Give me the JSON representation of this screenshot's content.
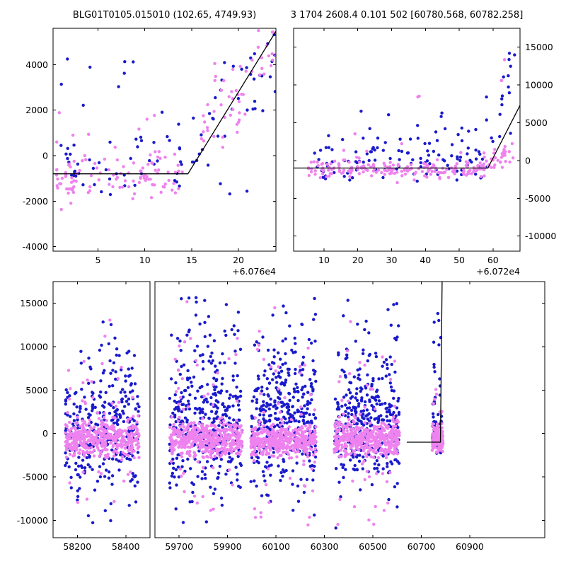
{
  "titles": {
    "left": "BLG01T0105.015010 (102.65, 4749.93)",
    "right": "3 1704 2608.4 0.101 502 [60780.568, 60782.258]"
  },
  "colors": {
    "blue": "#1a1acc",
    "violet": "#ee82ee",
    "line": "#000000",
    "frame": "#000000",
    "text": "#000000",
    "background": "#ffffff"
  },
  "chart_data": [
    {
      "id": "top_left",
      "type": "scatter",
      "title": "BLG01T0105.015010 (102.65, 4749.93)",
      "ylim": [
        -4200,
        5600
      ],
      "y_side": "left",
      "x_offset_label": "+6.076e4",
      "yticks": [
        {
          "v": -4000,
          "label": "-4000"
        },
        {
          "v": -2000,
          "label": "-2000"
        },
        {
          "v": 0,
          "label": "0"
        },
        {
          "v": 2000,
          "label": "2000"
        },
        {
          "v": 4000,
          "label": "4000"
        }
      ],
      "segments": [
        {
          "xlim": [
            60760.2,
            60784.0
          ],
          "xticks": [
            {
              "v": 60765,
              "label": "5"
            },
            {
              "v": 60770,
              "label": "10"
            },
            {
              "v": 60775,
              "label": "15"
            },
            {
              "v": 60780,
              "label": "20"
            }
          ]
        }
      ],
      "line": [
        [
          60760.2,
          -800
        ],
        [
          60774.6,
          -800
        ],
        [
          60784.5,
          5800
        ]
      ],
      "clusters": [
        {
          "c": "blue",
          "n": 50,
          "x": [
            60760.8,
            60774.0
          ],
          "ym": [
            -300,
            -300
          ],
          "s": 900,
          "clip": [
            -1800,
            2400
          ]
        },
        {
          "c": "blue",
          "n": 8,
          "x": [
            60761.0,
            60771.0
          ],
          "ym": [
            3600,
            3600
          ],
          "s": 800,
          "clip": [
            1800,
            4700
          ]
        },
        {
          "c": "blue",
          "n": 40,
          "x": [
            60774.5,
            60784.0
          ],
          "ym": [
            300,
            4300
          ],
          "s": 1100,
          "clip": [
            -1700,
            5500
          ]
        },
        {
          "c": "blue",
          "n": 2,
          "x": [
            60779.0,
            60781.0
          ],
          "ym": [
            -1500,
            -1500
          ],
          "s": 200,
          "clip": [
            -1700,
            -1200
          ]
        },
        {
          "c": "violet",
          "n": 95,
          "x": [
            60760.5,
            60774.2
          ],
          "ym": [
            -900,
            -900
          ],
          "s": 500,
          "clip": [
            -1900,
            400
          ]
        },
        {
          "c": "violet",
          "n": 20,
          "x": [
            60760.5,
            60774.0
          ],
          "ym": [
            -200,
            -200
          ],
          "s": 1300,
          "clip": [
            -2400,
            2400
          ]
        },
        {
          "c": "violet",
          "n": 55,
          "x": [
            60776.0,
            60784.2
          ],
          "ym": [
            700,
            4900
          ],
          "s": 900,
          "clip": [
            -600,
            5600
          ]
        }
      ]
    },
    {
      "id": "top_right",
      "type": "scatter",
      "title": "3 1704 2608.4 0.101 502 [60780.568, 60782.258]",
      "ylim": [
        -12000,
        17500
      ],
      "y_side": "right",
      "x_offset_label": "+6.072e4",
      "yticks": [
        {
          "v": -10000,
          "label": "-10000"
        },
        {
          "v": -5000,
          "label": "-5000"
        },
        {
          "v": 0,
          "label": "0"
        },
        {
          "v": 5000,
          "label": "5000"
        },
        {
          "v": 10000,
          "label": "10000"
        },
        {
          "v": 15000,
          "label": "15000"
        }
      ],
      "segments": [
        {
          "xlim": [
            60721,
            60788
          ],
          "xticks": [
            {
              "v": 60730,
              "label": "10"
            },
            {
              "v": 60740,
              "label": "20"
            },
            {
              "v": 60750,
              "label": "30"
            },
            {
              "v": 60760,
              "label": "40"
            },
            {
              "v": 60770,
              "label": "50"
            },
            {
              "v": 60780,
              "label": "60"
            }
          ]
        }
      ],
      "line": [
        [
          60721,
          -1000
        ],
        [
          60778.5,
          -1000
        ],
        [
          60788,
          7300
        ]
      ],
      "clusters": [
        {
          "c": "blue",
          "n": 95,
          "x": [
            60727.0,
            60777.0
          ],
          "ym": [
            -400,
            -400
          ],
          "s": 1500,
          "clip": [
            -2800,
            3800
          ]
        },
        {
          "c": "blue",
          "n": 25,
          "x": [
            60727.0,
            60776.0
          ],
          "ym": [
            2800,
            2800
          ],
          "s": 1700,
          "clip": [
            800,
            6800
          ]
        },
        {
          "c": "blue",
          "n": 16,
          "x": [
            60776.0,
            60786.0
          ],
          "ym": [
            1500,
            9500
          ],
          "s": 2600,
          "clip": [
            -1500,
            14500
          ]
        },
        {
          "c": "blue",
          "n": 4,
          "x": [
            60782.0,
            60786.5
          ],
          "ym": [
            13500,
            13500
          ],
          "s": 2000,
          "clip": [
            10000,
            16500
          ]
        },
        {
          "c": "violet",
          "n": 160,
          "x": [
            60725.0,
            60778.0
          ],
          "ym": [
            -1200,
            -1200
          ],
          "s": 600,
          "clip": [
            -2700,
            400
          ]
        },
        {
          "c": "violet",
          "n": 25,
          "x": [
            60727.0,
            60777.0
          ],
          "ym": [
            -500,
            -500
          ],
          "s": 1800,
          "clip": [
            -3200,
            4500
          ]
        },
        {
          "c": "violet",
          "n": 2,
          "x": [
            60757.5,
            60759.0
          ],
          "ym": [
            8000,
            8000
          ],
          "s": 300,
          "clip": [
            7400,
            8600
          ]
        },
        {
          "c": "violet",
          "n": 40,
          "x": [
            60776.0,
            60786.0
          ],
          "ym": [
            -900,
            800
          ],
          "s": 900,
          "clip": [
            -2200,
            3500
          ]
        },
        {
          "c": "violet",
          "n": 3,
          "x": [
            60780.0,
            60784.5
          ],
          "ym": [
            12200,
            12200
          ],
          "s": 1200,
          "clip": [
            10500,
            14000
          ]
        }
      ]
    },
    {
      "id": "bottom",
      "type": "scatter",
      "title": "",
      "ylim": [
        -12000,
        17500
      ],
      "y_side": "left",
      "x_offset_label": "",
      "yticks": [
        {
          "v": -10000,
          "label": "-10000"
        },
        {
          "v": -5000,
          "label": "-5000"
        },
        {
          "v": 0,
          "label": "0"
        },
        {
          "v": 5000,
          "label": "5000"
        },
        {
          "v": 10000,
          "label": "10000"
        },
        {
          "v": 15000,
          "label": "15000"
        }
      ],
      "segments": [
        {
          "xlim": [
            58100,
            58500
          ],
          "xticks": [
            {
              "v": 58200,
              "label": "58200"
            },
            {
              "v": 58400,
              "label": "58400"
            }
          ]
        },
        {
          "xlim": [
            59600,
            61210
          ],
          "xticks": [
            {
              "v": 59700,
              "label": "59700"
            },
            {
              "v": 59900,
              "label": "59900"
            },
            {
              "v": 60100,
              "label": "60100"
            },
            {
              "v": 60300,
              "label": "60300"
            },
            {
              "v": 60500,
              "label": "60500"
            },
            {
              "v": 60700,
              "label": "60700"
            },
            {
              "v": 60900,
              "label": "60900"
            }
          ]
        }
      ],
      "line": [
        [
          60640,
          -1000
        ],
        [
          60779,
          -1000
        ],
        [
          60786,
          17500
        ]
      ],
      "clusters": [
        {
          "c": "blue",
          "n": 210,
          "x": [
            58150,
            58455
          ],
          "ym": [
            600,
            600
          ],
          "s": 3200,
          "clip": [
            -7000,
            9500
          ]
        },
        {
          "c": "blue",
          "n": 115,
          "x": [
            58150,
            58455
          ],
          "ym": [
            3000,
            3000
          ],
          "s": 6500,
          "clip": [
            -11200,
            15800
          ]
        },
        {
          "c": "blue",
          "n": 250,
          "x": [
            59660,
            59960
          ],
          "ym": [
            800,
            800
          ],
          "s": 3400,
          "clip": [
            -7000,
            10200
          ]
        },
        {
          "c": "blue",
          "n": 135,
          "x": [
            59660,
            59960
          ],
          "ym": [
            3200,
            3200
          ],
          "s": 6500,
          "clip": [
            -11300,
            15900
          ]
        },
        {
          "c": "blue",
          "n": 250,
          "x": [
            59995,
            60265
          ],
          "ym": [
            1400,
            1400
          ],
          "s": 3400,
          "clip": [
            -5500,
            10800
          ]
        },
        {
          "c": "blue",
          "n": 135,
          "x": [
            59995,
            60265
          ],
          "ym": [
            3800,
            3800
          ],
          "s": 6400,
          "clip": [
            -9500,
            15900
          ]
        },
        {
          "c": "blue",
          "n": 250,
          "x": [
            60340,
            60610
          ],
          "ym": [
            900,
            900
          ],
          "s": 3400,
          "clip": [
            -7000,
            10200
          ]
        },
        {
          "c": "blue",
          "n": 125,
          "x": [
            60340,
            60610
          ],
          "ym": [
            3300,
            3300
          ],
          "s": 6400,
          "clip": [
            -11200,
            15800
          ]
        },
        {
          "c": "blue",
          "n": 40,
          "x": [
            60745,
            60788
          ],
          "ym": [
            100,
            100
          ],
          "s": 2200,
          "clip": [
            -2400,
            6500
          ]
        },
        {
          "c": "blue",
          "n": 12,
          "x": [
            60750,
            60788
          ],
          "ym": [
            6500,
            6500
          ],
          "s": 4500,
          "clip": [
            1500,
            14800
          ]
        },
        {
          "c": "violet",
          "n": 400,
          "x": [
            58150,
            58455
          ],
          "ym": [
            -600,
            -600
          ],
          "s": 1000,
          "clip": [
            -2800,
            2400
          ]
        },
        {
          "c": "violet",
          "n": 55,
          "x": [
            58155,
            58450
          ],
          "ym": [
            300,
            300
          ],
          "s": 5500,
          "clip": [
            -11000,
            14800
          ]
        },
        {
          "c": "violet",
          "n": 430,
          "x": [
            59660,
            59960
          ],
          "ym": [
            -700,
            -700
          ],
          "s": 1000,
          "clip": [
            -2800,
            2400
          ]
        },
        {
          "c": "violet",
          "n": 60,
          "x": [
            59665,
            59955
          ],
          "ym": [
            0,
            0
          ],
          "s": 6000,
          "clip": [
            -11300,
            15500
          ]
        },
        {
          "c": "violet",
          "n": 430,
          "x": [
            59995,
            60265
          ],
          "ym": [
            -800,
            -800
          ],
          "s": 900,
          "clip": [
            -2800,
            2200
          ]
        },
        {
          "c": "violet",
          "n": 55,
          "x": [
            60000,
            60260
          ],
          "ym": [
            0,
            0
          ],
          "s": 6000,
          "clip": [
            -11500,
            15500
          ]
        },
        {
          "c": "violet",
          "n": 430,
          "x": [
            60340,
            60610
          ],
          "ym": [
            -700,
            -700
          ],
          "s": 1000,
          "clip": [
            -2800,
            2400
          ]
        },
        {
          "c": "violet",
          "n": 55,
          "x": [
            60345,
            60605
          ],
          "ym": [
            -300,
            -300
          ],
          "s": 6000,
          "clip": [
            -11500,
            15000
          ]
        },
        {
          "c": "violet",
          "n": 150,
          "x": [
            60745,
            60790
          ],
          "ym": [
            -700,
            -700
          ],
          "s": 800,
          "clip": [
            -2200,
            1600
          ]
        },
        {
          "c": "violet",
          "n": 10,
          "x": [
            60750,
            60788
          ],
          "ym": [
            2200,
            2200
          ],
          "s": 2800,
          "clip": [
            -3500,
            7200
          ]
        }
      ]
    }
  ]
}
